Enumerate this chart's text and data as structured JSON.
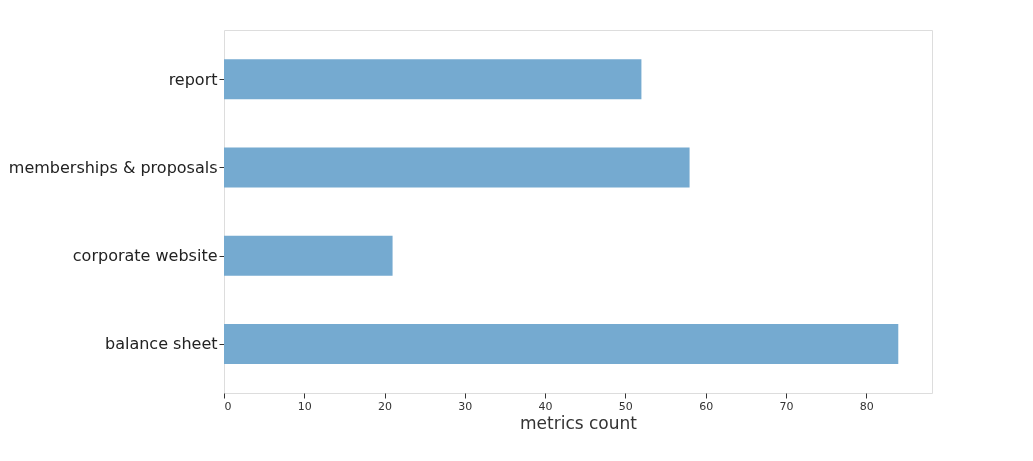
{
  "chart_data": {
    "type": "bar",
    "orientation": "horizontal",
    "xlabel": "metrics count",
    "categories": [
      "report",
      "memberships & proposals",
      "corporate website",
      "balance sheet"
    ],
    "values": [
      52,
      58,
      21,
      84
    ],
    "color": "#75aad0",
    "xlim": [
      0,
      88.2
    ],
    "xticks": [
      0,
      10,
      20,
      30,
      40,
      50,
      60,
      70,
      80
    ],
    "grid": false
  }
}
